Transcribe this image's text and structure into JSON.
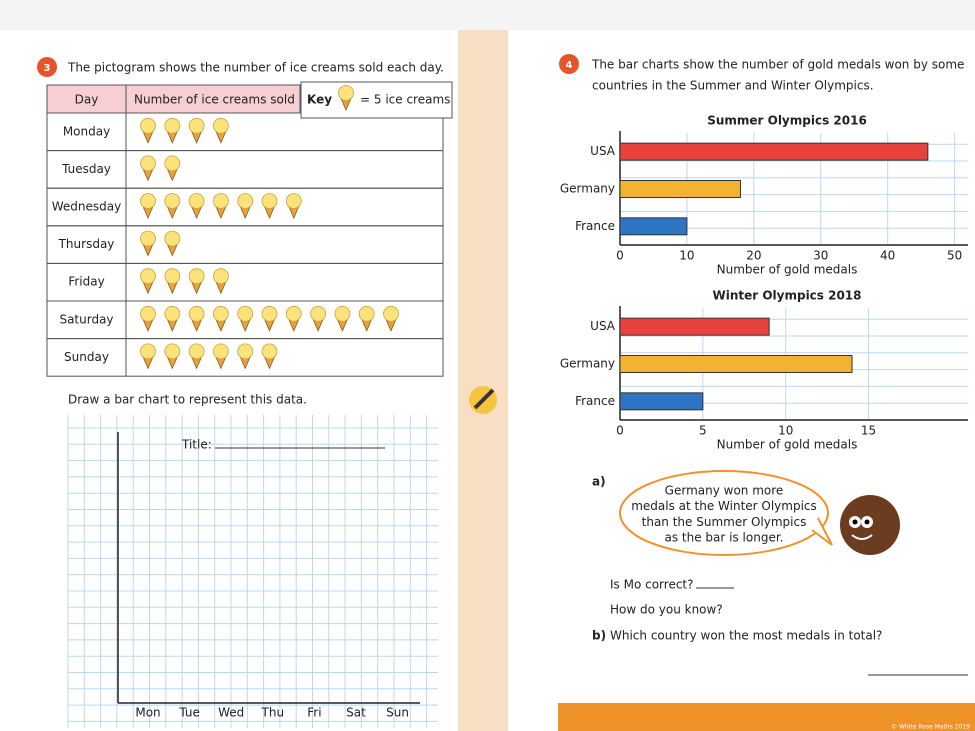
{
  "q3": {
    "number": "3",
    "text": "The pictogram shows the number of ice creams sold each day.",
    "table": {
      "headers": [
        "Day",
        "Number of ice creams sold"
      ],
      "rows": [
        {
          "day": "Monday",
          "icons": 4
        },
        {
          "day": "Tuesday",
          "icons": 2
        },
        {
          "day": "Wednesday",
          "icons": 7
        },
        {
          "day": "Thursday",
          "icons": 2
        },
        {
          "day": "Friday",
          "icons": 4
        },
        {
          "day": "Saturday",
          "icons": 11
        },
        {
          "day": "Sunday",
          "icons": 6
        }
      ]
    },
    "key": {
      "label": "Key",
      "text": "= 5 ice creams"
    },
    "instruction": "Draw a bar chart to represent this data.",
    "grid": {
      "title": "Title:",
      "categories": [
        "Mon",
        "Tue",
        "Wed",
        "Thu",
        "Fri",
        "Sat",
        "Sun"
      ]
    }
  },
  "q4": {
    "number": "4",
    "text": [
      "The bar charts show the number of gold medals won by some",
      "countries in the Summer and Winter Olympics."
    ],
    "charts": [
      {
        "type": "bar",
        "title": "Summer Olympics 2016",
        "categories": [
          "USA",
          "Germany",
          "France"
        ],
        "values": [
          46,
          18,
          10
        ],
        "colors": [
          "#e8423c",
          "#f3b332",
          "#2f74c0"
        ],
        "xlim": [
          0,
          52
        ],
        "xticks": [
          0,
          10,
          20,
          30,
          40,
          50
        ],
        "xlabel": "Number of gold medals",
        "grid": true
      },
      {
        "type": "bar",
        "title": "Winter Olympics 2018",
        "categories": [
          "USA",
          "Germany",
          "France"
        ],
        "values": [
          9,
          14,
          5
        ],
        "colors": [
          "#e8423c",
          "#f3b332",
          "#2f74c0"
        ],
        "xlim": [
          0,
          21
        ],
        "xticks": [
          0,
          5,
          10,
          15
        ],
        "xlabel": "Number of gold medals",
        "grid": true
      }
    ],
    "a": {
      "label": "a)",
      "speech": [
        "Germany won more",
        "medals at the Winter Olympics",
        "than the Summer Olympics",
        "as the bar is longer."
      ],
      "q1": "Is Mo correct?",
      "q2": "How do you know?"
    },
    "b": {
      "label": "b)",
      "text": "Which country won the most medals in total?"
    },
    "footer": "© White Rose Maths 2019"
  }
}
